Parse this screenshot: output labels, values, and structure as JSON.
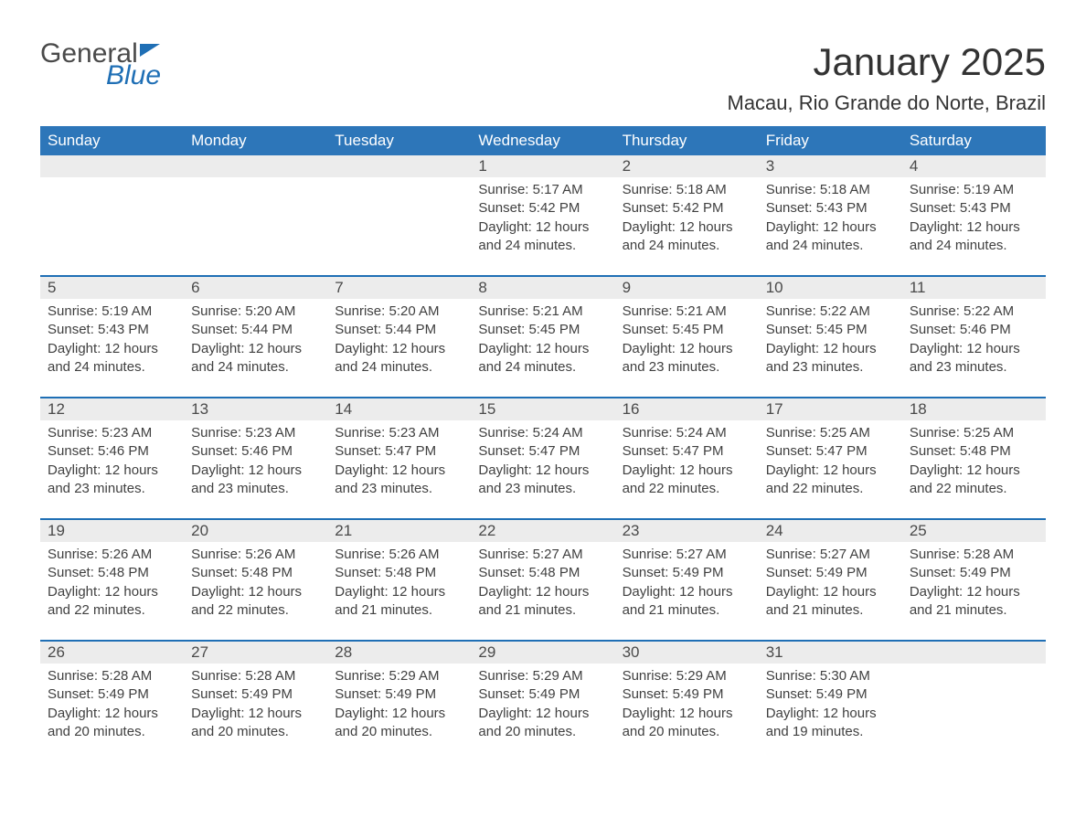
{
  "logo": {
    "word1": "General",
    "word2": "Blue"
  },
  "title": "January 2025",
  "subtitle": "Macau, Rio Grande do Norte, Brazil",
  "colors": {
    "header_blue": "#2d76b9",
    "accent_blue": "#1f6fb5",
    "daynum_bg": "#ececec",
    "text": "#333333"
  },
  "weekdays": [
    "Sunday",
    "Monday",
    "Tuesday",
    "Wednesday",
    "Thursday",
    "Friday",
    "Saturday"
  ],
  "weeks": [
    [
      null,
      null,
      null,
      {
        "n": "1",
        "sr": "5:17 AM",
        "ss": "5:42 PM",
        "dl": "12 hours and 24 minutes."
      },
      {
        "n": "2",
        "sr": "5:18 AM",
        "ss": "5:42 PM",
        "dl": "12 hours and 24 minutes."
      },
      {
        "n": "3",
        "sr": "5:18 AM",
        "ss": "5:43 PM",
        "dl": "12 hours and 24 minutes."
      },
      {
        "n": "4",
        "sr": "5:19 AM",
        "ss": "5:43 PM",
        "dl": "12 hours and 24 minutes."
      }
    ],
    [
      {
        "n": "5",
        "sr": "5:19 AM",
        "ss": "5:43 PM",
        "dl": "12 hours and 24 minutes."
      },
      {
        "n": "6",
        "sr": "5:20 AM",
        "ss": "5:44 PM",
        "dl": "12 hours and 24 minutes."
      },
      {
        "n": "7",
        "sr": "5:20 AM",
        "ss": "5:44 PM",
        "dl": "12 hours and 24 minutes."
      },
      {
        "n": "8",
        "sr": "5:21 AM",
        "ss": "5:45 PM",
        "dl": "12 hours and 24 minutes."
      },
      {
        "n": "9",
        "sr": "5:21 AM",
        "ss": "5:45 PM",
        "dl": "12 hours and 23 minutes."
      },
      {
        "n": "10",
        "sr": "5:22 AM",
        "ss": "5:45 PM",
        "dl": "12 hours and 23 minutes."
      },
      {
        "n": "11",
        "sr": "5:22 AM",
        "ss": "5:46 PM",
        "dl": "12 hours and 23 minutes."
      }
    ],
    [
      {
        "n": "12",
        "sr": "5:23 AM",
        "ss": "5:46 PM",
        "dl": "12 hours and 23 minutes."
      },
      {
        "n": "13",
        "sr": "5:23 AM",
        "ss": "5:46 PM",
        "dl": "12 hours and 23 minutes."
      },
      {
        "n": "14",
        "sr": "5:23 AM",
        "ss": "5:47 PM",
        "dl": "12 hours and 23 minutes."
      },
      {
        "n": "15",
        "sr": "5:24 AM",
        "ss": "5:47 PM",
        "dl": "12 hours and 23 minutes."
      },
      {
        "n": "16",
        "sr": "5:24 AM",
        "ss": "5:47 PM",
        "dl": "12 hours and 22 minutes."
      },
      {
        "n": "17",
        "sr": "5:25 AM",
        "ss": "5:47 PM",
        "dl": "12 hours and 22 minutes."
      },
      {
        "n": "18",
        "sr": "5:25 AM",
        "ss": "5:48 PM",
        "dl": "12 hours and 22 minutes."
      }
    ],
    [
      {
        "n": "19",
        "sr": "5:26 AM",
        "ss": "5:48 PM",
        "dl": "12 hours and 22 minutes."
      },
      {
        "n": "20",
        "sr": "5:26 AM",
        "ss": "5:48 PM",
        "dl": "12 hours and 22 minutes."
      },
      {
        "n": "21",
        "sr": "5:26 AM",
        "ss": "5:48 PM",
        "dl": "12 hours and 21 minutes."
      },
      {
        "n": "22",
        "sr": "5:27 AM",
        "ss": "5:48 PM",
        "dl": "12 hours and 21 minutes."
      },
      {
        "n": "23",
        "sr": "5:27 AM",
        "ss": "5:49 PM",
        "dl": "12 hours and 21 minutes."
      },
      {
        "n": "24",
        "sr": "5:27 AM",
        "ss": "5:49 PM",
        "dl": "12 hours and 21 minutes."
      },
      {
        "n": "25",
        "sr": "5:28 AM",
        "ss": "5:49 PM",
        "dl": "12 hours and 21 minutes."
      }
    ],
    [
      {
        "n": "26",
        "sr": "5:28 AM",
        "ss": "5:49 PM",
        "dl": "12 hours and 20 minutes."
      },
      {
        "n": "27",
        "sr": "5:28 AM",
        "ss": "5:49 PM",
        "dl": "12 hours and 20 minutes."
      },
      {
        "n": "28",
        "sr": "5:29 AM",
        "ss": "5:49 PM",
        "dl": "12 hours and 20 minutes."
      },
      {
        "n": "29",
        "sr": "5:29 AM",
        "ss": "5:49 PM",
        "dl": "12 hours and 20 minutes."
      },
      {
        "n": "30",
        "sr": "5:29 AM",
        "ss": "5:49 PM",
        "dl": "12 hours and 20 minutes."
      },
      {
        "n": "31",
        "sr": "5:30 AM",
        "ss": "5:49 PM",
        "dl": "12 hours and 19 minutes."
      },
      null
    ]
  ],
  "labels": {
    "sunrise": "Sunrise:",
    "sunset": "Sunset:",
    "daylight": "Daylight:"
  }
}
